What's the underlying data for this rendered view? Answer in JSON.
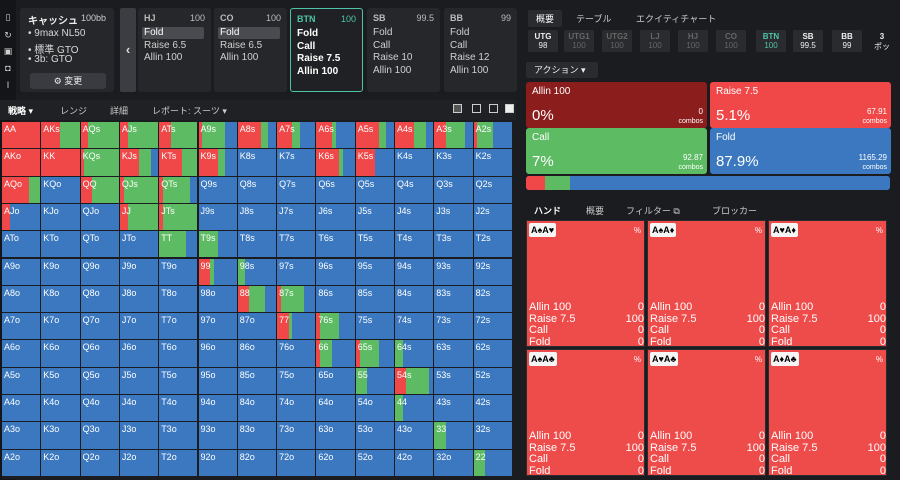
{
  "sidebar": {
    "icons": [
      "bookmark-icon",
      "refresh-icon",
      "save-icon",
      "gamepad-icon",
      "text-icon"
    ]
  },
  "strategy": {
    "title": "キャッシュ",
    "stack": "100bb",
    "lines": [
      "• 9max NL50",
      "• 標準 GTO",
      "• 3b: GTO"
    ],
    "change_label": "⚙ 変更"
  },
  "positions": [
    {
      "name": "HJ",
      "stack": "100",
      "actions": [
        "Fold",
        "Raise 6.5",
        "Allin 100"
      ],
      "selected": 0
    },
    {
      "name": "CO",
      "stack": "100",
      "actions": [
        "Fold",
        "Raise 6.5",
        "Allin 100"
      ],
      "selected": 0
    },
    {
      "name": "BTN",
      "stack": "100",
      "actions": [
        "Fold",
        "Call",
        "Raise 7.5",
        "Allin 100"
      ],
      "selected": -1,
      "active": true
    },
    {
      "name": "SB",
      "stack": "99.5",
      "actions": [
        "Fold",
        "Call",
        "Raise 10",
        "Allin 100"
      ],
      "selected": -1
    },
    {
      "name": "BB",
      "stack": "99",
      "actions": [
        "Fold",
        "Call",
        "Raise 12",
        "Allin 100"
      ],
      "selected": -1
    }
  ],
  "tabs": {
    "strategy": "戦略 ▾",
    "range": "レンジ",
    "detail": "詳細",
    "report": "レポート: スーツ ▾"
  },
  "grid_colors": {
    "red": "#ee4b4b",
    "green": "#5dbb63",
    "blue": "#3b78c0",
    "raise": "#f04848",
    "call": "#5dbb63",
    "fold": "#3b78c0"
  },
  "grid": {
    "rows": [
      [
        "AA",
        "AKs",
        "AQs",
        "AJs",
        "ATs",
        "A9s",
        "A8s",
        "A7s",
        "A6s",
        "A5s",
        "A4s",
        "A3s",
        "A2s"
      ],
      [
        "AKo",
        "KK",
        "KQs",
        "KJs",
        "KTs",
        "K9s",
        "K8s",
        "K7s",
        "K6s",
        "K5s",
        "K4s",
        "K3s",
        "K2s"
      ],
      [
        "AQo",
        "KQo",
        "QQ",
        "QJs",
        "QTs",
        "Q9s",
        "Q8s",
        "Q7s",
        "Q6s",
        "Q5s",
        "Q4s",
        "Q3s",
        "Q2s"
      ],
      [
        "AJo",
        "KJo",
        "QJo",
        "JJ",
        "JTs",
        "J9s",
        "J8s",
        "J7s",
        "J6s",
        "J5s",
        "J4s",
        "J3s",
        "J2s"
      ],
      [
        "ATo",
        "KTo",
        "QTo",
        "JTo",
        "TT",
        "T9s",
        "T8s",
        "T7s",
        "T6s",
        "T5s",
        "T4s",
        "T3s",
        "T2s"
      ],
      [
        "A9o",
        "K9o",
        "Q9o",
        "J9o",
        "T9o",
        "99",
        "98s",
        "97s",
        "96s",
        "95s",
        "94s",
        "93s",
        "92s"
      ],
      [
        "A8o",
        "K8o",
        "Q8o",
        "J8o",
        "T8o",
        "98o",
        "88",
        "87s",
        "86s",
        "85s",
        "84s",
        "83s",
        "82s"
      ],
      [
        "A7o",
        "K7o",
        "Q7o",
        "J7o",
        "T7o",
        "97o",
        "87o",
        "77",
        "76s",
        "75s",
        "74s",
        "73s",
        "72s"
      ],
      [
        "A6o",
        "K6o",
        "Q6o",
        "J6o",
        "T6o",
        "96o",
        "86o",
        "76o",
        "66",
        "65s",
        "64s",
        "63s",
        "62s"
      ],
      [
        "A5o",
        "K5o",
        "Q5o",
        "J5o",
        "T5o",
        "95o",
        "85o",
        "75o",
        "65o",
        "55",
        "54s",
        "53s",
        "52s"
      ],
      [
        "A4o",
        "K4o",
        "Q4o",
        "J4o",
        "T4o",
        "94o",
        "84o",
        "74o",
        "64o",
        "54o",
        "44",
        "43s",
        "42s"
      ],
      [
        "A3o",
        "K3o",
        "Q3o",
        "J3o",
        "T3o",
        "93o",
        "83o",
        "73o",
        "63o",
        "53o",
        "43o",
        "33",
        "32s"
      ],
      [
        "A2o",
        "K2o",
        "Q2o",
        "J2o",
        "T2o",
        "92o",
        "82o",
        "72o",
        "62o",
        "52o",
        "42o",
        "32o",
        "22"
      ]
    ],
    "mix": {
      "AA": [
        1,
        0,
        0
      ],
      "AKs": [
        0.5,
        0.5,
        0
      ],
      "AQs": [
        0.2,
        0.8,
        0
      ],
      "AJs": [
        0.2,
        0.8,
        0
      ],
      "ATs": [
        0.3,
        0.7,
        0
      ],
      "A9s": [
        0.1,
        0.6,
        0.3
      ],
      "A8s": [
        0.6,
        0.2,
        0.2
      ],
      "A7s": [
        0.4,
        0.2,
        0.4
      ],
      "A6s": [
        0.4,
        0.1,
        0.5
      ],
      "A5s": [
        0.6,
        0.2,
        0.2
      ],
      "A4s": [
        0.5,
        0.3,
        0.2
      ],
      "A3s": [
        0.3,
        0.5,
        0.2
      ],
      "A2s": [
        0.1,
        0.4,
        0.5
      ],
      "AKo": [
        1,
        0,
        0
      ],
      "KK": [
        1,
        0,
        0
      ],
      "KQs": [
        0.1,
        0.9,
        0
      ],
      "KJs": [
        0.5,
        0.3,
        0.2
      ],
      "KTs": [
        0.6,
        0.4,
        0
      ],
      "K9s": [
        0.5,
        0.2,
        0.3
      ],
      "K8s": [
        0,
        0,
        1
      ],
      "K7s": [
        0,
        0,
        1
      ],
      "K6s": [
        0.6,
        0.1,
        0.3
      ],
      "K5s": [
        0.5,
        0,
        0.5
      ],
      "K4s": [
        0,
        0,
        1
      ],
      "K3s": [
        0,
        0,
        1
      ],
      "K2s": [
        0,
        0,
        1
      ],
      "AQo": [
        0.7,
        0.3,
        0
      ],
      "KQo": [
        0,
        0,
        1
      ],
      "QQ": [
        0.3,
        0.7,
        0
      ],
      "QJs": [
        0.1,
        0.9,
        0
      ],
      "QTs": [
        0.1,
        0.7,
        0.2
      ],
      "Q9s": [
        0,
        0,
        1
      ],
      "Q8s": [
        0,
        0,
        1
      ],
      "Q7s": [
        0,
        0,
        1
      ],
      "Q6s": [
        0,
        0,
        1
      ],
      "Q5s": [
        0,
        0,
        1
      ],
      "Q4s": [
        0,
        0,
        1
      ],
      "Q3s": [
        0,
        0,
        1
      ],
      "Q2s": [
        0,
        0,
        1
      ],
      "AJo": [
        0.2,
        0,
        0.8
      ],
      "KJo": [
        0,
        0,
        1
      ],
      "QJo": [
        0,
        0,
        1
      ],
      "JJ": [
        0.2,
        0.8,
        0
      ],
      "JTs": [
        0.1,
        0.9,
        0
      ],
      "J9s": [
        0,
        0,
        1
      ],
      "J8s": [
        0,
        0,
        1
      ],
      "J7s": [
        0,
        0,
        1
      ],
      "J6s": [
        0,
        0,
        1
      ],
      "J5s": [
        0,
        0,
        1
      ],
      "J4s": [
        0,
        0,
        1
      ],
      "J3s": [
        0,
        0,
        1
      ],
      "J2s": [
        0,
        0,
        1
      ],
      "TT": [
        0,
        0.7,
        0.3
      ],
      "T9s": [
        0,
        0.5,
        0.5
      ],
      "99": [
        0.3,
        0.1,
        0.6
      ],
      "98s": [
        0,
        0.2,
        0.8
      ],
      "88": [
        0.3,
        0.4,
        0.3
      ],
      "87s": [
        0.1,
        0.6,
        0.3
      ],
      "77": [
        0.3,
        0.1,
        0.6
      ],
      "76s": [
        0.1,
        0.5,
        0.4
      ],
      "66": [
        0.1,
        0.3,
        0.6
      ],
      "65s": [
        0.1,
        0.5,
        0.4
      ],
      "64s": [
        0,
        0.2,
        0.8
      ],
      "55": [
        0,
        0.3,
        0.7
      ],
      "54s": [
        0.3,
        0.6,
        0.1
      ],
      "44": [
        0,
        0.2,
        0.8
      ],
      "33": [
        0,
        0.3,
        0.7
      ],
      "22": [
        0,
        0.3,
        0.7
      ]
    }
  },
  "right_tabs": [
    "概要",
    "テーブル",
    "エクイティチャート"
  ],
  "seats": [
    {
      "n": "UTG",
      "v": "98",
      "state": "hi"
    },
    {
      "n": "UTG1",
      "v": "100",
      "state": "off"
    },
    {
      "n": "UTG2",
      "v": "100",
      "state": "off"
    },
    {
      "n": "LJ",
      "v": "100",
      "state": "off"
    },
    {
      "n": "HJ",
      "v": "100",
      "state": "off"
    },
    {
      "n": "CO",
      "v": "100",
      "state": "off"
    },
    {
      "n": "BTN",
      "v": "100",
      "state": "act"
    },
    {
      "n": "SB",
      "v": "99.5",
      "state": "hi"
    },
    {
      "n": "BB",
      "v": "99",
      "state": "hi"
    },
    {
      "n": "3",
      "v": "ポッ",
      "state": "hi"
    }
  ],
  "action_header": "アクション ▾",
  "actions": [
    {
      "name": "Allin 100",
      "pct": "0%",
      "combos": "0",
      "combos_label": "combos",
      "color": "#8b1d1d"
    },
    {
      "name": "Raise 7.5",
      "pct": "5.1%",
      "combos": "67.91",
      "combos_label": "combos",
      "color": "#f04848"
    },
    {
      "name": "Call",
      "pct": "7%",
      "combos": "92.87",
      "combos_label": "combos",
      "color": "#5dbb63"
    },
    {
      "name": "Fold",
      "pct": "87.9%",
      "combos": "1165.29",
      "combos_label": "combos",
      "color": "#3b78c0"
    }
  ],
  "freq": {
    "raise": 0.051,
    "call": 0.07,
    "fold": 0.879
  },
  "hands_tabs": [
    "ハンド",
    "概要",
    "フィルター ⧉",
    "ブロッカー"
  ],
  "hands": [
    {
      "cards": "A♠A♥",
      "rows": [
        [
          "Allin 100",
          "0"
        ],
        [
          "Raise 7.5",
          "100"
        ],
        [
          "Call",
          "0"
        ],
        [
          "Fold",
          "0"
        ]
      ]
    },
    {
      "cards": "A♠A♦",
      "rows": [
        [
          "Allin 100",
          "0"
        ],
        [
          "Raise 7.5",
          "100"
        ],
        [
          "Call",
          "0"
        ],
        [
          "Fold",
          "0"
        ]
      ]
    },
    {
      "cards": "A♥A♦",
      "rows": [
        [
          "Allin 100",
          "0"
        ],
        [
          "Raise 7.5",
          "100"
        ],
        [
          "Call",
          "0"
        ],
        [
          "Fold",
          "0"
        ]
      ]
    },
    {
      "cards": "A♠A♣",
      "rows": [
        [
          "Allin 100",
          "0"
        ],
        [
          "Raise 7.5",
          "100"
        ],
        [
          "Call",
          "0"
        ],
        [
          "Fold",
          "0"
        ]
      ]
    },
    {
      "cards": "A♥A♣",
      "rows": [
        [
          "Allin 100",
          "0"
        ],
        [
          "Raise 7.5",
          "100"
        ],
        [
          "Call",
          "0"
        ],
        [
          "Fold",
          "0"
        ]
      ]
    },
    {
      "cards": "A♦A♣",
      "rows": [
        [
          "Allin 100",
          "0"
        ],
        [
          "Raise 7.5",
          "100"
        ],
        [
          "Call",
          "0"
        ],
        [
          "Fold",
          "0"
        ]
      ]
    }
  ]
}
